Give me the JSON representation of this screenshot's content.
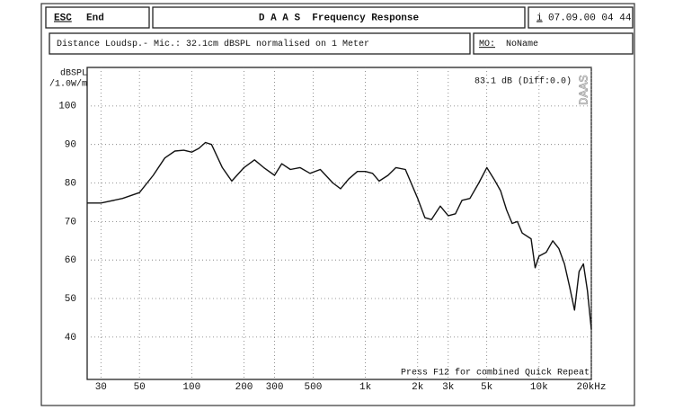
{
  "header": {
    "esc": "ESC",
    "end": "End",
    "title": "D A A S  Frequency Response",
    "info_icon": "i",
    "datetime": "07.09.00 04 44",
    "info": "Distance Loudsp.- Mic.: 32.1cm dBSPL normalised on 1 Meter",
    "mo_label": "MO:",
    "mo_value": "NoName"
  },
  "chart_data": {
    "type": "line",
    "ylabel": "dBSPL",
    "ylabel_unit": "/1.0W/m",
    "annotation": "83.1 dB (Diff:0.0)",
    "watermark": "DAAS",
    "footer_note": "Press F12 for combined Quick Repeat",
    "xscale": "log",
    "grid": true,
    "color": "#111111",
    "xlim": [
      25,
      20000
    ],
    "ylim": [
      29,
      110
    ],
    "xticks": [
      30,
      50,
      100,
      200,
      300,
      500,
      {
        "value": 1000,
        "label": "1k"
      },
      {
        "value": 2000,
        "label": "2k"
      },
      {
        "value": 3000,
        "label": "3k"
      },
      {
        "value": 5000,
        "label": "5k"
      },
      {
        "value": 10000,
        "label": "10k"
      },
      {
        "value": 20000,
        "label": "20kHz"
      }
    ],
    "yticks": [
      40,
      50,
      60,
      70,
      80,
      90,
      100
    ],
    "x": [
      25,
      30,
      40,
      50,
      60,
      70,
      80,
      90,
      100,
      110,
      120,
      130,
      150,
      170,
      200,
      230,
      260,
      300,
      330,
      370,
      420,
      480,
      550,
      650,
      720,
      800,
      900,
      1000,
      1100,
      1200,
      1350,
      1500,
      1700,
      2000,
      2200,
      2400,
      2700,
      3000,
      3300,
      3600,
      4000,
      4500,
      5000,
      5500,
      6000,
      6500,
      7000,
      7500,
      8000,
      9000,
      9500,
      10000,
      11000,
      12000,
      13000,
      14000,
      15000,
      16000,
      17000,
      18000,
      19000,
      20000
    ],
    "values": [
      74.8,
      74.8,
      76,
      77.5,
      82,
      86.5,
      88.3,
      88.5,
      88,
      89,
      90.5,
      90,
      84,
      80.5,
      84,
      86,
      84,
      82,
      85,
      83.5,
      84,
      82.5,
      83.5,
      80,
      78.5,
      81,
      83,
      83,
      82.5,
      80.5,
      82,
      84,
      83.5,
      76,
      71,
      70.5,
      74,
      71.5,
      72,
      75.5,
      76,
      80,
      84,
      81,
      78,
      73,
      69.5,
      70,
      67,
      65.5,
      58,
      61,
      62,
      65,
      63,
      59,
      53,
      47,
      57,
      59,
      52,
      42
    ]
  }
}
